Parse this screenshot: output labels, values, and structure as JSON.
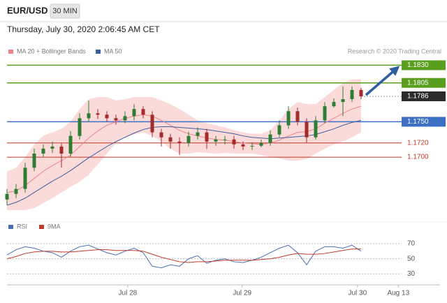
{
  "header": {
    "symbol": "EUR/USD",
    "interval": "30 MIN",
    "timestamp": "Thursday, July 30, 2020 2:06:45 AM CET"
  },
  "chart_data": {
    "type": "candlestick",
    "credit": "Research © 2020 Trading Central",
    "up_color": "#2f7d32",
    "down_color": "#a52a2a",
    "open": [
      1.164,
      1.1648,
      1.1655,
      1.1685,
      1.1705,
      1.1712,
      1.1715,
      1.1705,
      1.173,
      1.1755,
      1.1762,
      1.176,
      1.1755,
      1.1752,
      1.1758,
      1.1768,
      1.176,
      1.1735,
      1.1728,
      1.1722,
      1.172,
      1.173,
      1.1735,
      1.1722,
      1.1725,
      1.1725,
      1.1718,
      1.1715,
      1.1716,
      1.172,
      1.1732,
      1.1745,
      1.1765,
      1.175,
      1.1728,
      1.1752,
      1.1772,
      1.1778,
      1.1782,
      1.1795
    ],
    "high": [
      1.1655,
      1.1662,
      1.1692,
      1.1712,
      1.1718,
      1.1722,
      1.172,
      1.1737,
      1.1762,
      1.178,
      1.1768,
      1.1765,
      1.176,
      1.1765,
      1.1775,
      1.1772,
      1.1765,
      1.174,
      1.1733,
      1.1728,
      1.1736,
      1.1742,
      1.174,
      1.173,
      1.173,
      1.173,
      1.1722,
      1.1721,
      1.1725,
      1.1738,
      1.1752,
      1.1772,
      1.177,
      1.1755,
      1.1758,
      1.1778,
      1.1783,
      1.18,
      1.18,
      1.1798
    ],
    "low": [
      1.1632,
      1.1642,
      1.165,
      1.168,
      1.17,
      1.1706,
      1.1685,
      1.17,
      1.1725,
      1.175,
      1.1754,
      1.175,
      1.1746,
      1.1748,
      1.1752,
      1.1755,
      1.1728,
      1.1715,
      1.1712,
      1.1703,
      1.1715,
      1.1725,
      1.1712,
      1.1716,
      1.1718,
      1.1712,
      1.171,
      1.171,
      1.1714,
      1.1716,
      1.1728,
      1.174,
      1.1745,
      1.172,
      1.1725,
      1.1748,
      1.177,
      1.1758,
      1.1778,
      1.1782
    ],
    "close": [
      1.1648,
      1.1655,
      1.1685,
      1.1705,
      1.1712,
      1.1715,
      1.1705,
      1.173,
      1.1755,
      1.1762,
      1.176,
      1.1755,
      1.1752,
      1.1758,
      1.1768,
      1.176,
      1.1735,
      1.1728,
      1.1722,
      1.172,
      1.173,
      1.1735,
      1.1722,
      1.1725,
      1.1725,
      1.1718,
      1.1715,
      1.1716,
      1.172,
      1.1732,
      1.1745,
      1.1765,
      1.175,
      1.1728,
      1.1752,
      1.1772,
      1.1778,
      1.1782,
      1.1795,
      1.1786
    ],
    "series": [
      {
        "name": "MA 20 + Bollinger Bands",
        "color": "#e8868c",
        "band_color": "#fbdada",
        "values": [
          1.165,
          1.1652,
          1.166,
          1.167,
          1.168,
          1.1688,
          1.1695,
          1.1703,
          1.1715,
          1.1727,
          1.1737,
          1.1745,
          1.175,
          1.1755,
          1.1758,
          1.176,
          1.1758,
          1.1752,
          1.1745,
          1.1738,
          1.1733,
          1.173,
          1.1727,
          1.1725,
          1.1724,
          1.1722,
          1.172,
          1.1719,
          1.1718,
          1.172,
          1.1724,
          1.173,
          1.1735,
          1.1736,
          1.174,
          1.1748,
          1.1755,
          1.1762,
          1.1768,
          1.1772
        ],
        "upper": [
          1.168,
          1.1685,
          1.17,
          1.1718,
          1.173,
          1.1735,
          1.174,
          1.175,
          1.1768,
          1.1782,
          1.1785,
          1.1785,
          1.178,
          1.1782,
          1.1785,
          1.1785,
          1.1785,
          1.178,
          1.1775,
          1.1768,
          1.176,
          1.1752,
          1.1748,
          1.1745,
          1.1742,
          1.1738,
          1.1735,
          1.1733,
          1.1733,
          1.1738,
          1.1752,
          1.1768,
          1.1778,
          1.1775,
          1.1775,
          1.1785,
          1.1795,
          1.1805,
          1.181,
          1.181
        ],
        "lower": [
          1.1625,
          1.1625,
          1.1625,
          1.1628,
          1.1635,
          1.1642,
          1.165,
          1.1658,
          1.1665,
          1.1675,
          1.169,
          1.1705,
          1.172,
          1.1728,
          1.1732,
          1.1735,
          1.173,
          1.1722,
          1.1712,
          1.1705,
          1.1705,
          1.1707,
          1.1706,
          1.1705,
          1.1706,
          1.1705,
          1.1705,
          1.1705,
          1.1703,
          1.17,
          1.1698,
          1.1695,
          1.1695,
          1.1697,
          1.1705,
          1.1712,
          1.1718,
          1.1722,
          1.1728,
          1.1735
        ]
      },
      {
        "name": "MA 50",
        "color": "#3b5fa0",
        "values": [
          1.1632,
          1.1636,
          1.1642,
          1.165,
          1.1658,
          1.1666,
          1.1673,
          1.1681,
          1.169,
          1.1699,
          1.1707,
          1.1715,
          1.1722,
          1.1728,
          1.1734,
          1.1739,
          1.1742,
          1.1743,
          1.1743,
          1.1742,
          1.1741,
          1.174,
          1.1739,
          1.1737,
          1.1735,
          1.1733,
          1.173,
          1.1728,
          1.1727,
          1.1726,
          1.1727,
          1.1728,
          1.1729,
          1.173,
          1.1732,
          1.1736,
          1.174,
          1.1745,
          1.1749,
          1.1752
        ]
      }
    ],
    "levels": [
      {
        "price": {
          "value": 1.183,
          "label": "1.1830"
        },
        "color": "#5a9e1e",
        "box": true
      },
      {
        "price": 1.1805,
        "color": "#5a9e1e",
        "box": true
      },
      {
        "price": 1.1786,
        "color": "#2b2b2b",
        "box": true
      },
      {
        "price": {
          "value": 1.175,
          "label": "1.1750"
        },
        "color": "#3d6fc4",
        "box": true
      },
      {
        "price": {
          "value": 1.172,
          "label": "1.1720"
        },
        "color": "#c0392b",
        "box": false
      },
      {
        "price": {
          "value": 1.17,
          "label": "1.1700"
        },
        "color": "#c0392b",
        "box": false
      }
    ],
    "ylim": [
      1.1626,
      1.1863
    ],
    "xlim": [
      0,
      48
    ],
    "xticks": [
      {
        "value": 13.3,
        "label": "Jul 28"
      },
      {
        "value": 25.9,
        "label": "Jul 29"
      },
      {
        "value": 38.6,
        "label": "Jul 30"
      },
      {
        "value": 43.1,
        "label": "Aug 13"
      }
    ],
    "rsi": {
      "ylim": [
        20,
        83
      ],
      "yticks": [
        30,
        50,
        70
      ],
      "series": [
        {
          "name": "RSI",
          "color": "#4a6fb0",
          "values": [
            55,
            62,
            66,
            64,
            60,
            58,
            52,
            60,
            66,
            68,
            63,
            58,
            55,
            60,
            64,
            58,
            40,
            38,
            42,
            40,
            50,
            54,
            44,
            48,
            50,
            46,
            45,
            48,
            52,
            58,
            64,
            68,
            58,
            42,
            60,
            66,
            66,
            64,
            68,
            60
          ]
        },
        {
          "name": "9MA",
          "color": "#c0392b",
          "values": [
            50,
            53,
            57,
            59,
            60,
            60,
            59,
            59,
            60,
            61,
            62,
            62,
            61,
            61,
            61,
            60,
            56,
            52,
            49,
            46,
            45,
            46,
            46,
            47,
            48,
            48,
            48,
            48,
            49,
            50,
            52,
            55,
            57,
            56,
            56,
            57,
            59,
            61,
            63,
            63
          ]
        }
      ]
    }
  }
}
